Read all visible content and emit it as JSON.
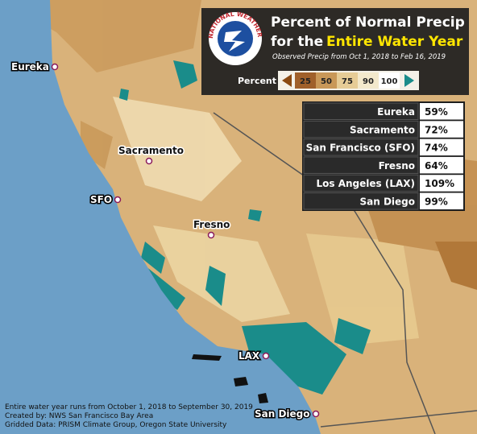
{
  "title": {
    "line1": "Percent of Normal Precip",
    "line2": "for the",
    "highlight": "Entire Water Year"
  },
  "subtitle": "Observed Precip from Oct 1, 2018 to Feb 16, 2019",
  "logo_text": "NATIONAL WEATHER SERVICE",
  "legend": {
    "label": "Percent",
    "stops": [
      "25",
      "50",
      "75",
      "90",
      "100"
    ]
  },
  "table": {
    "rows": [
      [
        "Eureka",
        "59%"
      ],
      [
        "Sacramento",
        "72%"
      ],
      [
        "San Francisco (SFO)",
        "74%"
      ],
      [
        "Fresno",
        "64%"
      ],
      [
        "Los Angeles (LAX)",
        "109%"
      ],
      [
        "San Diego",
        "99%"
      ]
    ]
  },
  "cities": [
    "Eureka",
    "Sacramento",
    "SFO",
    "Fresno",
    "LAX",
    "San Diego"
  ],
  "footer": [
    "Entire water year runs from October 1, 2018 to September 30, 2019",
    "Created by: NWS San Francisco Bay Area",
    "Gridded Data: PRISM Climate Group, Oregon State University"
  ]
}
